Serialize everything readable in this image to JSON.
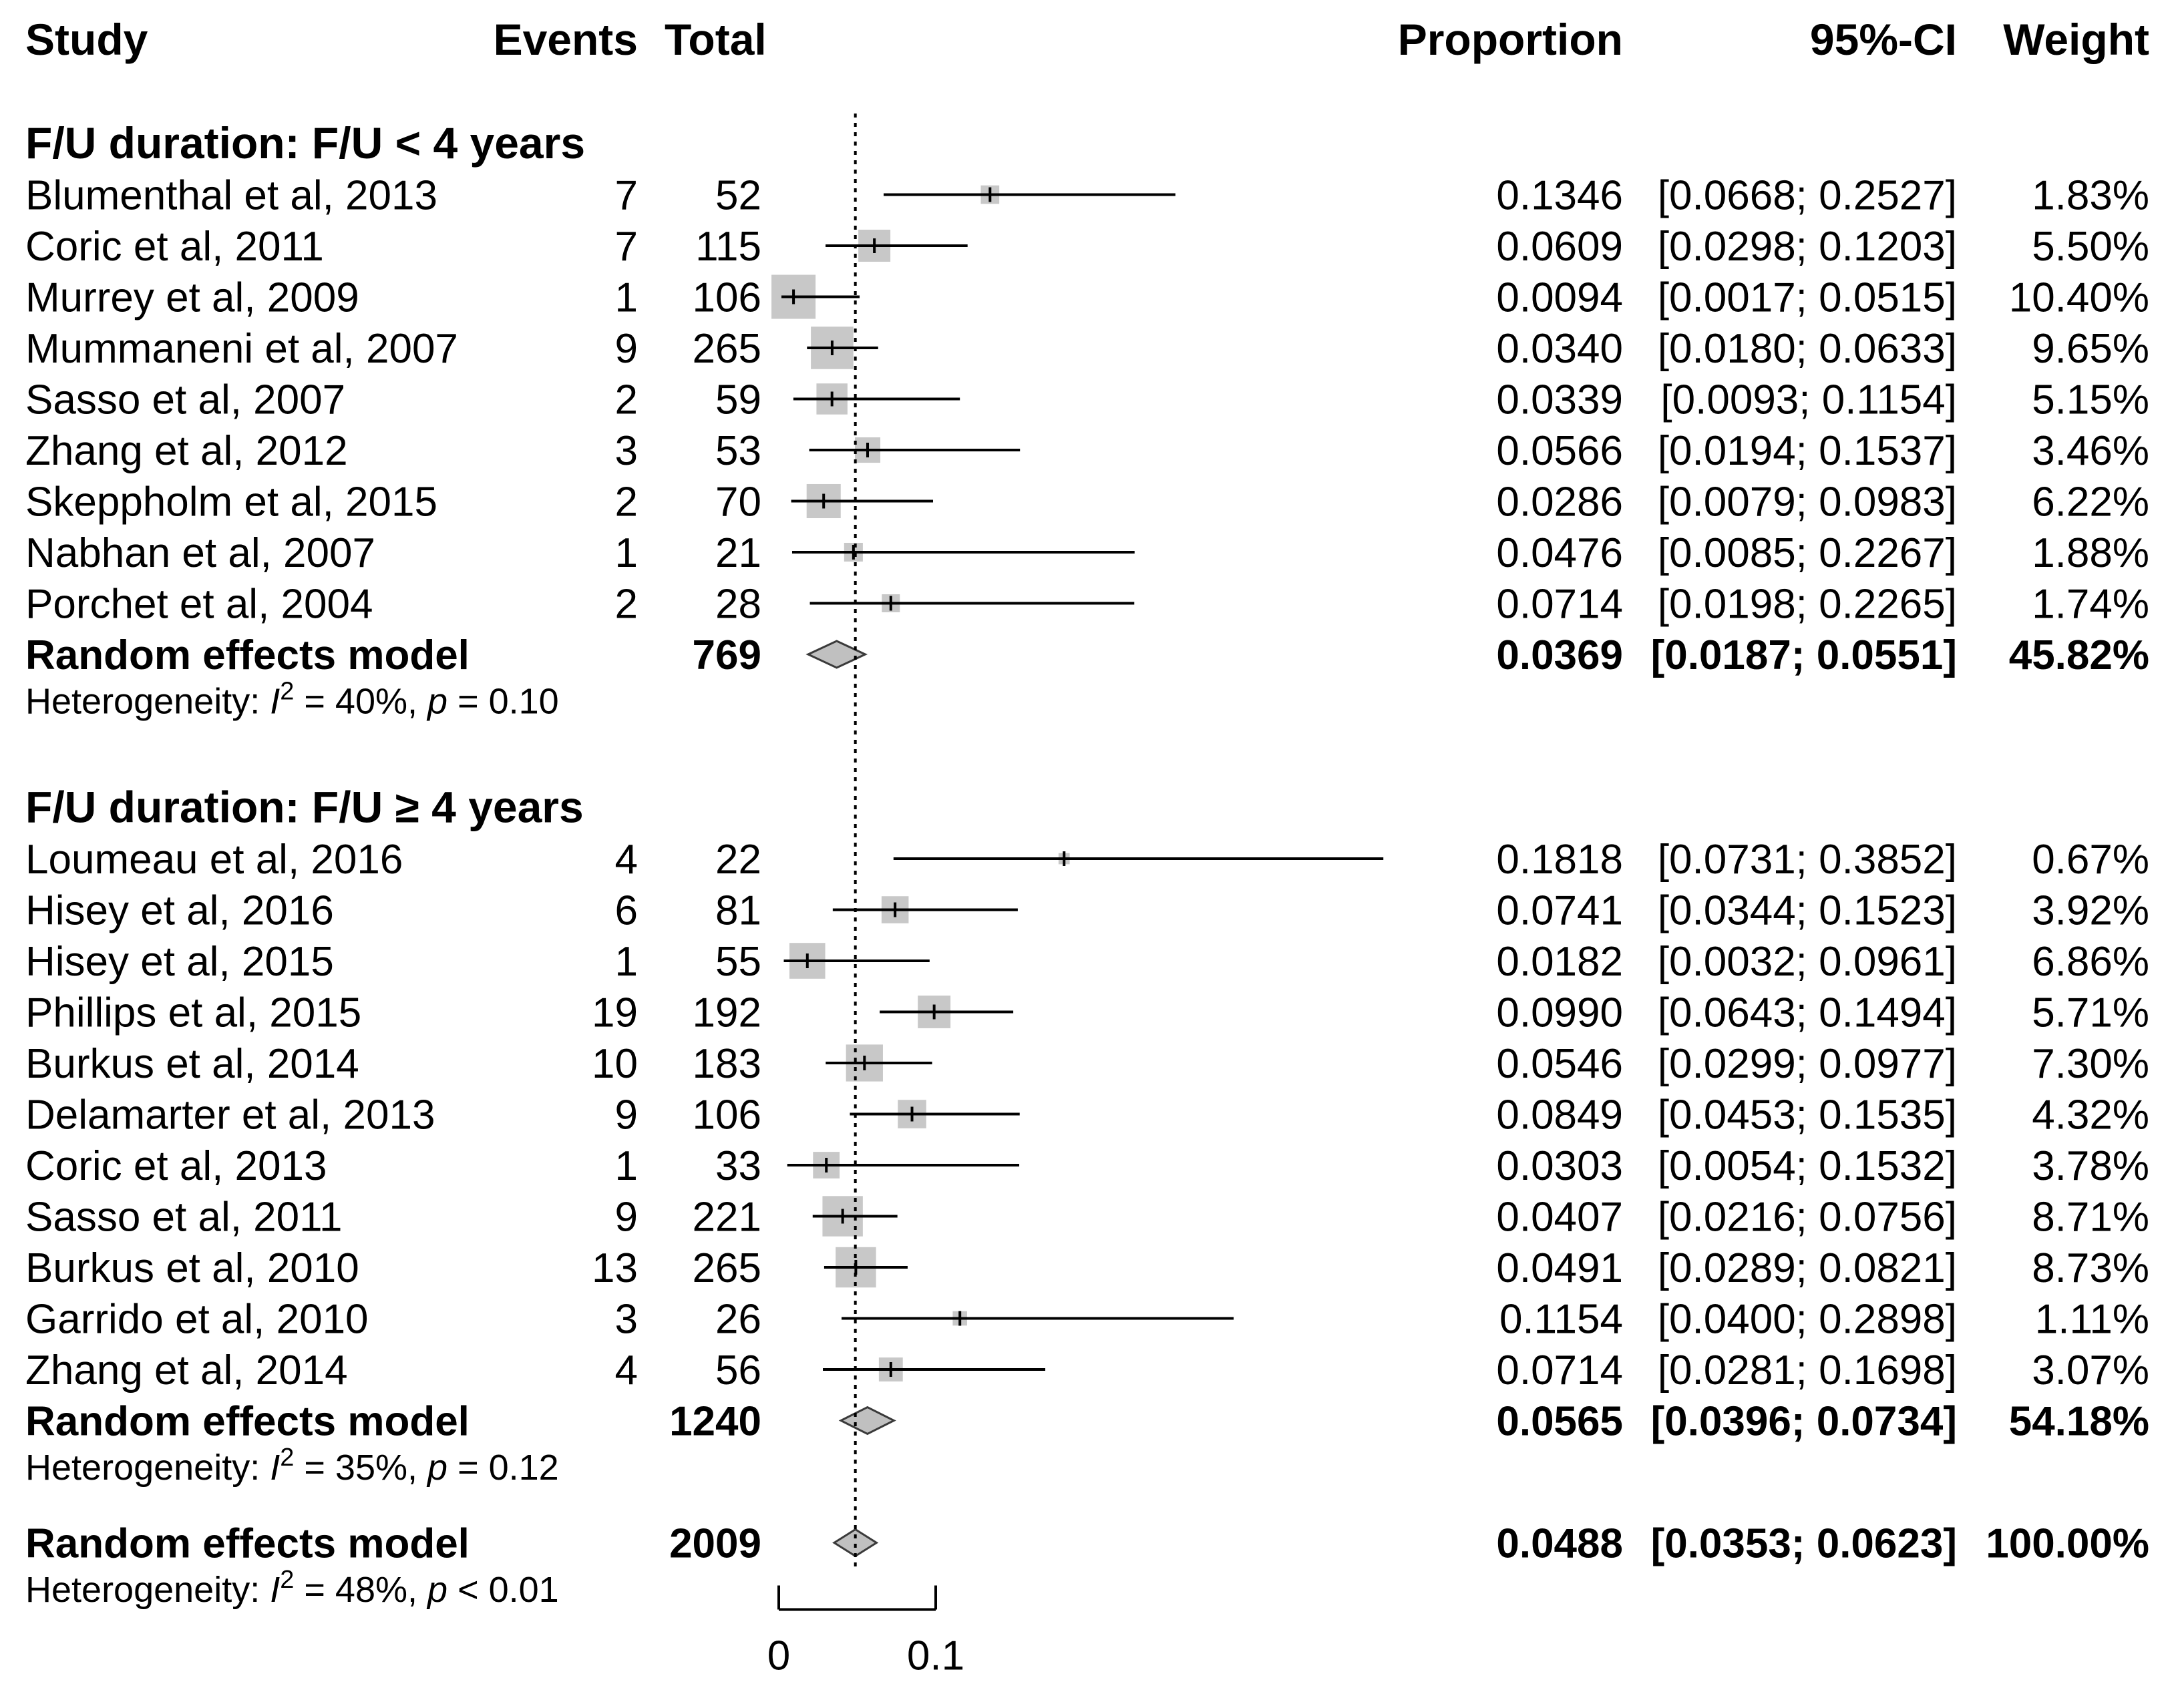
{
  "chart_data": {
    "type": "forest",
    "columns": {
      "study": "Study",
      "events": "Events",
      "total": "Total",
      "proportion": "Proportion",
      "ci": "95%-CI",
      "weight": "Weight"
    },
    "reference_line": 0.0488,
    "x_axis": {
      "min": 0,
      "max": 0.1,
      "ticks": [
        "0",
        "0.1"
      ]
    },
    "colors": {
      "box": "#c8c8c8",
      "diamond": "#c0c0c0",
      "line": "#000000"
    },
    "groups": [
      {
        "title": "F/U duration: F/U < 4 years",
        "studies": [
          {
            "name": "Blumenthal et al, 2013",
            "events": "7",
            "total": "52",
            "prop": 0.1346,
            "lo": 0.0668,
            "hi": 0.2527,
            "prop_text": "0.1346",
            "ci_text": "[0.0668; 0.2527]",
            "weight_text": "1.83%",
            "weight": 1.83
          },
          {
            "name": "Coric et al, 2011",
            "events": "7",
            "total": "115",
            "prop": 0.0609,
            "lo": 0.0298,
            "hi": 0.1203,
            "prop_text": "0.0609",
            "ci_text": "[0.0298; 0.1203]",
            "weight_text": "5.50%",
            "weight": 5.5
          },
          {
            "name": "Murrey et al, 2009",
            "events": "1",
            "total": "106",
            "prop": 0.0094,
            "lo": 0.0017,
            "hi": 0.0515,
            "prop_text": "0.0094",
            "ci_text": "[0.0017; 0.0515]",
            "weight_text": "10.40%",
            "weight": 10.4
          },
          {
            "name": "Mummaneni et al, 2007",
            "events": "9",
            "total": "265",
            "prop": 0.034,
            "lo": 0.018,
            "hi": 0.0633,
            "prop_text": "0.0340",
            "ci_text": "[0.0180; 0.0633]",
            "weight_text": "9.65%",
            "weight": 9.65
          },
          {
            "name": "Sasso et al, 2007",
            "events": "2",
            "total": "59",
            "prop": 0.0339,
            "lo": 0.0093,
            "hi": 0.1154,
            "prop_text": "0.0339",
            "ci_text": "[0.0093; 0.1154]",
            "weight_text": "5.15%",
            "weight": 5.15
          },
          {
            "name": "Zhang et al, 2012",
            "events": "3",
            "total": "53",
            "prop": 0.0566,
            "lo": 0.0194,
            "hi": 0.1537,
            "prop_text": "0.0566",
            "ci_text": "[0.0194; 0.1537]",
            "weight_text": "3.46%",
            "weight": 3.46
          },
          {
            "name": "Skeppholm et al, 2015",
            "events": "2",
            "total": "70",
            "prop": 0.0286,
            "lo": 0.0079,
            "hi": 0.0983,
            "prop_text": "0.0286",
            "ci_text": "[0.0079; 0.0983]",
            "weight_text": "6.22%",
            "weight": 6.22
          },
          {
            "name": "Nabhan et al, 2007",
            "events": "1",
            "total": "21",
            "prop": 0.0476,
            "lo": 0.0085,
            "hi": 0.2267,
            "prop_text": "0.0476",
            "ci_text": "[0.0085; 0.2267]",
            "weight_text": "1.88%",
            "weight": 1.88
          },
          {
            "name": "Porchet et al, 2004",
            "events": "2",
            "total": "28",
            "prop": 0.0714,
            "lo": 0.0198,
            "hi": 0.2265,
            "prop_text": "0.0714",
            "ci_text": "[0.0198; 0.2265]",
            "weight_text": "1.74%",
            "weight": 1.74
          }
        ],
        "model": {
          "name": "Random effects model",
          "total": "769",
          "prop": 0.0369,
          "lo": 0.0187,
          "hi": 0.0551,
          "prop_text": "0.0369",
          "ci_text": "[0.0187; 0.0551]",
          "weight_text": "45.82%"
        },
        "heterogeneity": {
          "label": "Heterogeneity: ",
          "I2": "40%",
          "p_op": "=",
          "p": "0.10"
        }
      },
      {
        "title": "F/U duration: F/U ≥ 4 years",
        "studies": [
          {
            "name": "Loumeau et al, 2016",
            "events": "4",
            "total": "22",
            "prop": 0.1818,
            "lo": 0.0731,
            "hi": 0.3852,
            "prop_text": "0.1818",
            "ci_text": "[0.0731; 0.3852]",
            "weight_text": "0.67%",
            "weight": 0.67
          },
          {
            "name": "Hisey et al, 2016",
            "events": "6",
            "total": "81",
            "prop": 0.0741,
            "lo": 0.0344,
            "hi": 0.1523,
            "prop_text": "0.0741",
            "ci_text": "[0.0344; 0.1523]",
            "weight_text": "3.92%",
            "weight": 3.92
          },
          {
            "name": "Hisey et al, 2015",
            "events": "1",
            "total": "55",
            "prop": 0.0182,
            "lo": 0.0032,
            "hi": 0.0961,
            "prop_text": "0.0182",
            "ci_text": "[0.0032; 0.0961]",
            "weight_text": "6.86%",
            "weight": 6.86
          },
          {
            "name": "Phillips et al, 2015",
            "events": "19",
            "total": "192",
            "prop": 0.099,
            "lo": 0.0643,
            "hi": 0.1494,
            "prop_text": "0.0990",
            "ci_text": "[0.0643; 0.1494]",
            "weight_text": "5.71%",
            "weight": 5.71
          },
          {
            "name": "Burkus et al, 2014",
            "events": "10",
            "total": "183",
            "prop": 0.0546,
            "lo": 0.0299,
            "hi": 0.0977,
            "prop_text": "0.0546",
            "ci_text": "[0.0299; 0.0977]",
            "weight_text": "7.30%",
            "weight": 7.3
          },
          {
            "name": "Delamarter et al, 2013",
            "events": "9",
            "total": "106",
            "prop": 0.0849,
            "lo": 0.0453,
            "hi": 0.1535,
            "prop_text": "0.0849",
            "ci_text": "[0.0453; 0.1535]",
            "weight_text": "4.32%",
            "weight": 4.32
          },
          {
            "name": "Coric et al, 2013",
            "events": "1",
            "total": "33",
            "prop": 0.0303,
            "lo": 0.0054,
            "hi": 0.1532,
            "prop_text": "0.0303",
            "ci_text": "[0.0054; 0.1532]",
            "weight_text": "3.78%",
            "weight": 3.78
          },
          {
            "name": "Sasso et al, 2011",
            "events": "9",
            "total": "221",
            "prop": 0.0407,
            "lo": 0.0216,
            "hi": 0.0756,
            "prop_text": "0.0407",
            "ci_text": "[0.0216; 0.0756]",
            "weight_text": "8.71%",
            "weight": 8.71
          },
          {
            "name": "Burkus et al, 2010",
            "events": "13",
            "total": "265",
            "prop": 0.0491,
            "lo": 0.0289,
            "hi": 0.0821,
            "prop_text": "0.0491",
            "ci_text": "[0.0289; 0.0821]",
            "weight_text": "8.73%",
            "weight": 8.73
          },
          {
            "name": "Garrido et al, 2010",
            "events": "3",
            "total": "26",
            "prop": 0.1154,
            "lo": 0.04,
            "hi": 0.2898,
            "prop_text": "0.1154",
            "ci_text": "[0.0400; 0.2898]",
            "weight_text": "1.11%",
            "weight": 1.11
          },
          {
            "name": "Zhang et al, 2014",
            "events": "4",
            "total": "56",
            "prop": 0.0714,
            "lo": 0.0281,
            "hi": 0.1698,
            "prop_text": "0.0714",
            "ci_text": "[0.0281; 0.1698]",
            "weight_text": "3.07%",
            "weight": 3.07
          }
        ],
        "model": {
          "name": "Random effects model",
          "total": "1240",
          "prop": 0.0565,
          "lo": 0.0396,
          "hi": 0.0734,
          "prop_text": "0.0565",
          "ci_text": "[0.0396; 0.0734]",
          "weight_text": "54.18%"
        },
        "heterogeneity": {
          "label": "Heterogeneity: ",
          "I2": "35%",
          "p_op": "=",
          "p": "0.12"
        }
      }
    ],
    "overall": {
      "model": {
        "name": "Random effects model",
        "total": "2009",
        "prop": 0.0488,
        "lo": 0.0353,
        "hi": 0.0623,
        "prop_text": "0.0488",
        "ci_text": "[0.0353; 0.0623]",
        "weight_text": "100.00%"
      },
      "heterogeneity": {
        "label": "Heterogeneity: ",
        "I2": "48%",
        "p_op": "<",
        "p": "0.01"
      }
    }
  }
}
